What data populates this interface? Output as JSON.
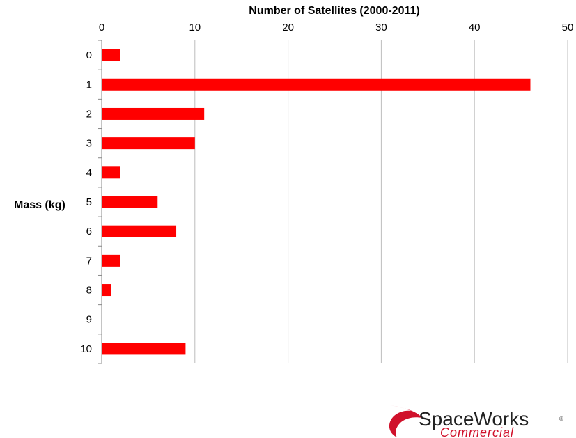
{
  "chart_data": {
    "type": "bar",
    "orientation": "horizontal",
    "title": "Number of Satellites (2000-2011)",
    "ylabel": "Mass (kg)",
    "xlabel": "",
    "categories": [
      "0",
      "1",
      "2",
      "3",
      "4",
      "5",
      "6",
      "7",
      "8",
      "9",
      "10"
    ],
    "values": [
      2,
      46,
      11,
      10,
      2,
      6,
      8,
      2,
      1,
      0,
      9
    ],
    "xlim": [
      0,
      50
    ],
    "xticks": [
      "0",
      "10",
      "20",
      "30",
      "40",
      "50"
    ],
    "x_axis_position": "top",
    "grid": "vertical",
    "bar_color": "#ff0000"
  },
  "logo": {
    "name": "SpaceWorks",
    "registered": "®",
    "subtitle": "Commercial",
    "color": "#d0112b"
  }
}
